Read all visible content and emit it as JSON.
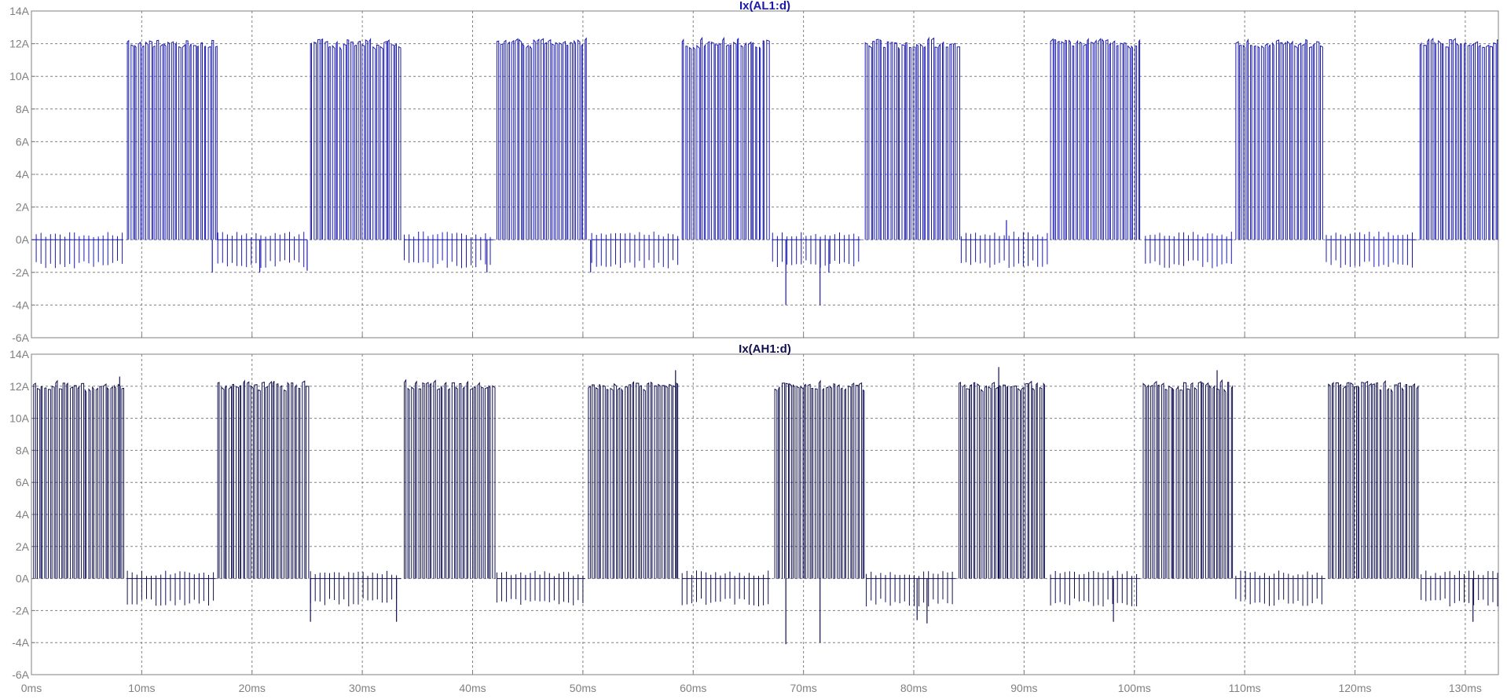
{
  "window": {
    "background": "#ffffff",
    "plot_border": "#808080",
    "grid_color": "#808080"
  },
  "chart_data": [
    {
      "type": "line",
      "title": "Ix(AL1:d)",
      "title_color": "#1a1aa8",
      "trace_color": "#1a1ab0",
      "xlabel": "",
      "ylabel": "",
      "xlim": [
        0,
        133
      ],
      "ylim": [
        -6,
        14
      ],
      "grid": true,
      "y_ticks": [
        -6,
        -4,
        -2,
        0,
        2,
        4,
        6,
        8,
        10,
        12,
        14
      ],
      "y_tick_labels": [
        "-6A",
        "-4A",
        "-2A",
        "0A",
        "2A",
        "4A",
        "6A",
        "8A",
        "10A",
        "12A",
        "14A"
      ],
      "series": [
        {
          "pwm_period_ms": 0.3333,
          "on_level_A": 12.0,
          "off_level_A": 0.0,
          "negative_spike_A": -1.5,
          "conduction_intervals_ms": [
            [
              8.7,
              16.7
            ],
            [
              25.3,
              33.5
            ],
            [
              42.2,
              50.5
            ],
            [
              59.0,
              66.8
            ],
            [
              75.6,
              84.0
            ],
            [
              92.4,
              100.7
            ],
            [
              109.2,
              117.1
            ],
            [
              125.9,
              133.0
            ]
          ],
          "negative_spike_intervals_ms": [
            [
              0.0,
              8.3
            ],
            [
              16.9,
              25.0
            ],
            [
              33.8,
              41.9
            ],
            [
              50.8,
              58.7
            ],
            [
              67.2,
              75.2
            ],
            [
              84.3,
              92.1
            ],
            [
              101.0,
              108.9
            ],
            [
              117.4,
              125.6
            ]
          ],
          "outlier_spikes": [
            [
              16.4,
              -2.0
            ],
            [
              20.7,
              -2.0
            ],
            [
              25.0,
              -1.9
            ],
            [
              41.3,
              -2.0
            ],
            [
              50.7,
              -2.0
            ],
            [
              68.4,
              -4.0
            ],
            [
              71.5,
              -4.0
            ],
            [
              72.3,
              -2.0
            ],
            [
              88.4,
              1.2
            ]
          ]
        }
      ]
    },
    {
      "type": "line",
      "title": "Ix(AH1:d)",
      "title_color": "#101050",
      "trace_color": "#101050",
      "xlabel": "",
      "ylabel": "",
      "xlim": [
        0,
        133
      ],
      "ylim": [
        -6,
        14
      ],
      "grid": true,
      "x_ticks": [
        0,
        10,
        20,
        30,
        40,
        50,
        60,
        70,
        80,
        90,
        100,
        110,
        120,
        130
      ],
      "x_tick_labels": [
        "0ms",
        "10ms",
        "20ms",
        "30ms",
        "40ms",
        "50ms",
        "60ms",
        "70ms",
        "80ms",
        "90ms",
        "100ms",
        "110ms",
        "120ms",
        "130ms"
      ],
      "y_ticks": [
        -6,
        -4,
        -2,
        0,
        2,
        4,
        6,
        8,
        10,
        12,
        14
      ],
      "y_tick_labels": [
        "-6A",
        "-4A",
        "-2A",
        "0A",
        "2A",
        "4A",
        "6A",
        "8A",
        "10A",
        "12A",
        "14A"
      ],
      "series": [
        {
          "pwm_period_ms": 0.3333,
          "on_level_A": 12.0,
          "off_level_A": 0.0,
          "negative_spike_A": -1.5,
          "conduction_intervals_ms": [
            [
              0.2,
              8.3
            ],
            [
              16.9,
              25.0
            ],
            [
              33.8,
              41.9
            ],
            [
              50.5,
              58.7
            ],
            [
              67.4,
              75.4
            ],
            [
              84.1,
              92.0
            ],
            [
              100.8,
              108.8
            ],
            [
              117.6,
              125.6
            ]
          ],
          "negative_spike_intervals_ms": [
            [
              8.7,
              16.7
            ],
            [
              25.3,
              33.5
            ],
            [
              42.2,
              50.2
            ],
            [
              59.0,
              67.0
            ],
            [
              75.7,
              83.8
            ],
            [
              92.4,
              100.5
            ],
            [
              109.2,
              117.3
            ],
            [
              126.0,
              133.0
            ]
          ],
          "outlier_spikes": [
            [
              8.0,
              12.6
            ],
            [
              25.3,
              -2.7
            ],
            [
              33.1,
              -2.7
            ],
            [
              58.4,
              13.0
            ],
            [
              68.4,
              -4.1
            ],
            [
              71.5,
              -4.0
            ],
            [
              87.7,
              13.2
            ],
            [
              107.5,
              13.0
            ],
            [
              80.3,
              -2.6
            ],
            [
              81.2,
              -2.8
            ],
            [
              98.1,
              -2.7
            ],
            [
              130.7,
              -2.7
            ]
          ]
        }
      ]
    }
  ]
}
